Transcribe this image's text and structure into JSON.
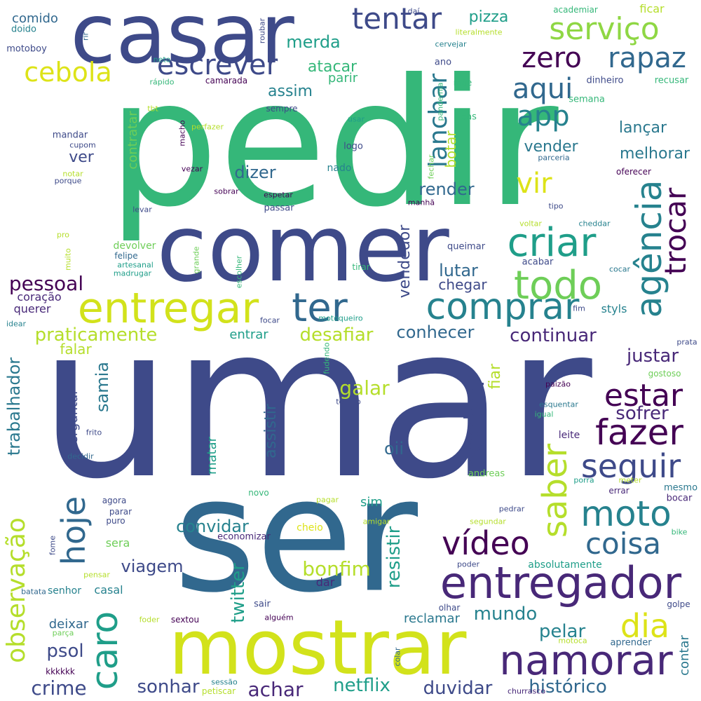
{
  "palette": {
    "c1": "#440154",
    "c2": "#482878",
    "c3": "#3e4a89",
    "c4": "#31688e",
    "c5": "#26828e",
    "c6": "#1f9e89",
    "c7": "#35b779",
    "c8": "#6ece58",
    "c9": "#b5de2b",
    "c10": "#dde318"
  },
  "words": [
    "pedir",
    "umar",
    "ser",
    "comer",
    "casar",
    "mostrar",
    "entregar",
    "entregador",
    "namorar",
    "ter",
    "comprar",
    "criar",
    "todo",
    "vídeo",
    "fazer",
    "seguir",
    "moto",
    "coisa",
    "estar",
    "agência",
    "trocar",
    "saber",
    "caro",
    "hoje",
    "dia",
    "observação",
    "serviço",
    "tentar",
    "escrever",
    "cebola",
    "zero",
    "rapaz",
    "aqui",
    "app",
    "vir",
    "lanchar",
    "receber",
    "pessoal",
    "praticamente",
    "desafiar",
    "conhecer",
    "continuar",
    "justar",
    "sofrer",
    "galar",
    "resistir",
    "bonfim",
    "twitter",
    "netflix",
    "duvidar",
    "histórico",
    "crime",
    "psol",
    "sonhar",
    "achar",
    "viagem",
    "convidar",
    "mundo",
    "pelar",
    "reclamar",
    "trabalhador",
    "samia",
    "contratar",
    "render",
    "lutar",
    "chegar",
    "vendedor",
    "dizer",
    "ver",
    "vender",
    "melhorar",
    "lançar",
    "pizza",
    "merda",
    "atacar",
    "parir",
    "assim",
    "comido",
    "doido",
    "motoboy",
    "fiar",
    "assistir",
    "oii",
    "matar",
    "perguntar",
    "falar",
    "entrar",
    "coração",
    "querer",
    "devolver",
    "sera",
    "casal",
    "deixar",
    "senhor",
    "sim",
    "sair",
    "dar",
    "contar",
    "mesmo",
    "bocar",
    "leite",
    "andreas",
    "logo",
    "nado",
    "botar",
    "styls",
    "absolutamente",
    "economizar",
    "queimar",
    "acabar",
    "ficar",
    "academiar",
    "literalmente",
    "cervejar",
    "ano",
    "mãe",
    "dinheiro",
    "recusar",
    "semana",
    "pandemia",
    "cas",
    "usar",
    "sempre",
    "camarada",
    "rápido",
    "neto",
    "rir",
    "daí",
    "roubar",
    "tbt",
    "mandar",
    "cupom",
    "notar",
    "porque",
    "vezar",
    "sobrar",
    "espetar",
    "passar",
    "levar",
    "manhã",
    "tipo",
    "voltar",
    "cheddar",
    "oferecer",
    "parceria",
    "fechar",
    "macho",
    "perfazer",
    "felipe",
    "artesanal",
    "madrugar",
    "grande",
    "muito",
    "escolher",
    "tirar",
    "cocar",
    "fim",
    "focar",
    "motoqueiro",
    "idear",
    "prata",
    "gostoso",
    "paizão",
    "esquentar",
    "igual",
    "fudendo",
    "tempo",
    "frito",
    "decidir",
    "porra",
    "meter",
    "errar",
    "pedrar",
    "agora",
    "parar",
    "puro",
    "novo",
    "pagar",
    "amigar",
    "cheio",
    "segundar",
    "bike",
    "fome",
    "pensar",
    "poder",
    "olhar",
    "golpe",
    "batata",
    "foder",
    "sextou",
    "alguém",
    "parça",
    "motoca",
    "aprender",
    "colar",
    "kkkkkk",
    "sessão",
    "petiscar",
    "churrasco",
    "pro"
  ]
}
